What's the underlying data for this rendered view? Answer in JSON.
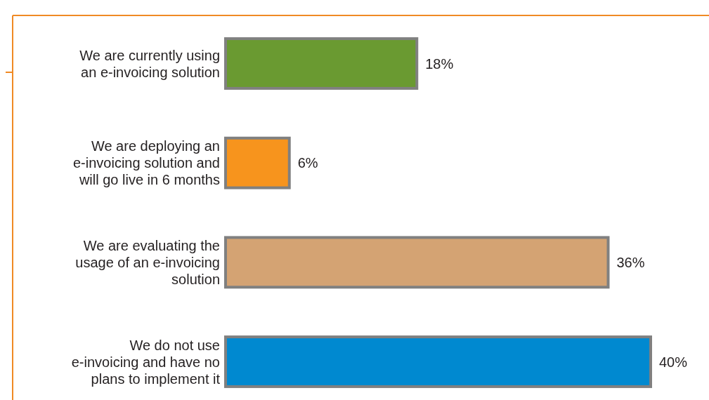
{
  "chart_data": {
    "type": "bar",
    "orientation": "horizontal",
    "categories": [
      "We are currently using an e-invoicing solution",
      "We are deploying an e-invoicing solution and will go live in 6 months",
      "We are evaluating the usage of an e-invoicing solution",
      "We do not use e-invoicing and have no plans to implement it"
    ],
    "values": [
      18,
      6,
      36,
      40
    ],
    "colors": [
      "#6a9a31",
      "#f7941d",
      "#d4a373",
      "#0089d0"
    ],
    "value_labels": [
      "18%",
      "6%",
      "36%",
      "40%"
    ]
  }
}
